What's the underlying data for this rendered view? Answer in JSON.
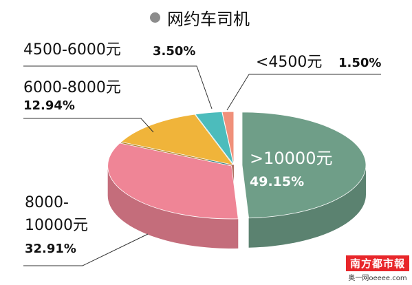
{
  "title": "网约车司机",
  "colors": {
    "legend_dot": "#8c8c8c",
    "slices": [
      "#6f9e88",
      "#ef8596",
      "#f0b43a",
      "#4cbcbc",
      "#f0907a"
    ]
  },
  "chart_data": {
    "type": "pie",
    "style": "3d-exploded",
    "title": "网约车司机",
    "slices": [
      {
        "label": ">10000元",
        "value": 49.15,
        "display": "49.15%"
      },
      {
        "label": "8000-10000元",
        "label_line1": "8000-",
        "label_line2": "10000元",
        "value": 32.91,
        "display": "32.91%"
      },
      {
        "label": "6000-8000元",
        "value": 12.94,
        "display": "12.94%"
      },
      {
        "label": "4500-6000元",
        "value": 3.5,
        "display": "3.50%"
      },
      {
        "label": "<4500元",
        "value": 1.5,
        "display": "1.50%"
      }
    ]
  },
  "watermark": {
    "main": "南方都市報",
    "sub": "奥一网oeeee.com"
  }
}
